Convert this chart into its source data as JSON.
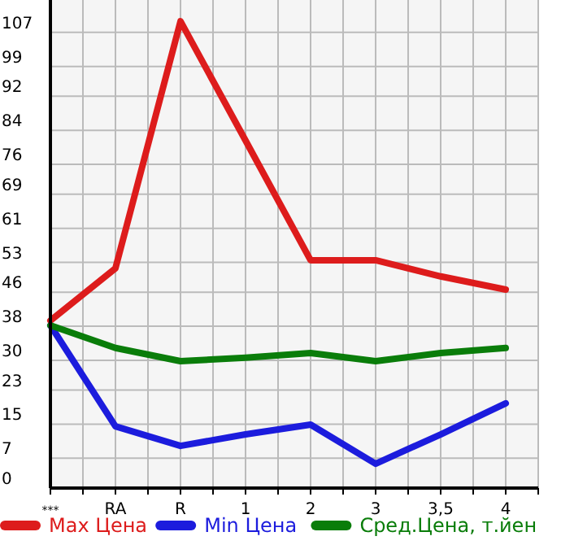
{
  "chart_data": {
    "type": "line",
    "categories": [
      "***",
      "RA",
      "R",
      "1",
      "2",
      "3",
      "3,5",
      "4"
    ],
    "series": [
      {
        "name": "Max Цена",
        "color": "#dd1c1c",
        "values": [
          39.3,
          51.6,
          109.6,
          81.6,
          53.5,
          53.5,
          49.7,
          46.6
        ]
      },
      {
        "name": "Min Цена",
        "color": "#1c1cdd",
        "values": [
          38.2,
          14.5,
          9.9,
          12.6,
          14.9,
          5.7,
          12.6,
          19.9
        ]
      },
      {
        "name": "Сред.Цена, т.йен",
        "color": "#0a7d0a",
        "values": [
          38.2,
          32.9,
          29.8,
          30.6,
          31.7,
          29.8,
          31.7,
          32.9
        ]
      }
    ],
    "ylim": [
      0,
      114.6
    ],
    "yticks": [
      0,
      7,
      15,
      23,
      30,
      38,
      46,
      53,
      61,
      69,
      76,
      84,
      92,
      99,
      107
    ],
    "grid": true,
    "legend": "bottom",
    "marker": "none",
    "line_style": "solid"
  }
}
